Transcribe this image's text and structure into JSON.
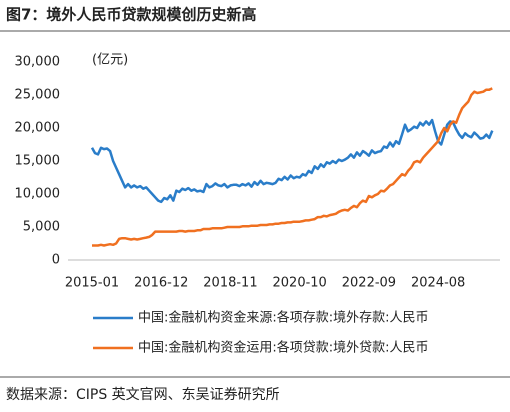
{
  "chart_data": {
    "type": "line",
    "title": "图7：境外人民币贷款规模创历史新高",
    "y_unit": "(亿元)",
    "source": "数据来源：CIPS 英文官网、东吴证券研究所",
    "categories": [
      "2015-01",
      null,
      null,
      null,
      null,
      null,
      null,
      null,
      null,
      null,
      null,
      null,
      null,
      null,
      null,
      null,
      null,
      null,
      null,
      null,
      null,
      null,
      null,
      "2016-12",
      null,
      null,
      null,
      null,
      null,
      null,
      null,
      null,
      null,
      null,
      null,
      null,
      null,
      null,
      null,
      null,
      null,
      null,
      null,
      null,
      null,
      null,
      "2018-11",
      null,
      null,
      null,
      null,
      null,
      null,
      null,
      null,
      null,
      null,
      null,
      null,
      null,
      null,
      null,
      null,
      null,
      null,
      null,
      null,
      null,
      null,
      "2020-10",
      null,
      null,
      null,
      null,
      null,
      null,
      null,
      null,
      null,
      null,
      null,
      null,
      null,
      null,
      null,
      null,
      null,
      null,
      null,
      null,
      null,
      null,
      "2022-09",
      null,
      null,
      null,
      null,
      null,
      null,
      null,
      null,
      null,
      null,
      null,
      null,
      null,
      null,
      null,
      null,
      null,
      null,
      null,
      null,
      null,
      null,
      "2024-08",
      null,
      null,
      null,
      null,
      null,
      null,
      null,
      null,
      null,
      null,
      null,
      null,
      null,
      null,
      null,
      null,
      null,
      null
    ],
    "ylim": [
      0,
      30000
    ],
    "yticks": [
      0,
      {
        "value": 5000,
        "label": "5,000"
      },
      {
        "value": 10000,
        "label": "10,000"
      },
      {
        "value": 15000,
        "label": "15,000"
      },
      {
        "value": 20000,
        "label": "20,000"
      },
      {
        "value": 25000,
        "label": "25,000"
      },
      {
        "value": 30000,
        "label": "30,000"
      }
    ],
    "grid": false,
    "series": [
      {
        "name": "中国:金融机构资金来源:各项存款:境外存款:人民币",
        "color": "#2a7dc9",
        "values": [
          17000,
          16200,
          16000,
          17000,
          16800,
          16900,
          16500,
          15000,
          14000,
          13000,
          12000,
          11000,
          11500,
          11000,
          11300,
          11000,
          11200,
          10800,
          11000,
          10500,
          10000,
          9500,
          9000,
          8800,
          9400,
          9200,
          9800,
          9000,
          10500,
          10300,
          10800,
          10600,
          10900,
          10500,
          10700,
          10400,
          10500,
          10300,
          11500,
          11000,
          11200,
          11600,
          11300,
          11200,
          11500,
          11000,
          11300,
          11400,
          11400,
          11200,
          11500,
          11300,
          11600,
          11100,
          11800,
          11400,
          12000,
          11500,
          11700,
          11600,
          11500,
          11700,
          12300,
          12100,
          12600,
          12200,
          12800,
          12400,
          12600,
          12500,
          13000,
          12800,
          13500,
          13200,
          14200,
          13800,
          14500,
          14100,
          14800,
          14600,
          15000,
          14700,
          15200,
          15000,
          15200,
          15500,
          16000,
          15500,
          16300,
          15800,
          16500,
          16200,
          15800,
          16600,
          16200,
          16400,
          16500,
          17200,
          17000,
          17800,
          17200,
          18000,
          17600,
          19000,
          20500,
          19500,
          19800,
          20200,
          20000,
          20800,
          20400,
          21000,
          20500,
          21200,
          19500,
          18000,
          17500,
          19000,
          20500,
          21000,
          20800,
          19800,
          19000,
          18500,
          19200,
          18800,
          18600,
          19300,
          18900,
          18400,
          18500,
          19000,
          18500,
          19600
        ]
      },
      {
        "name": "中国:金融机构资金运用:各项贷款:境外贷款:人民币",
        "color": "#f07020",
        "values": [
          2200,
          2200,
          2200,
          2300,
          2200,
          2300,
          2400,
          2300,
          2500,
          3200,
          3300,
          3300,
          3200,
          3100,
          3200,
          3100,
          3200,
          3300,
          3400,
          3500,
          3800,
          4300,
          4300,
          4300,
          4300,
          4300,
          4300,
          4300,
          4300,
          4400,
          4400,
          4300,
          4400,
          4400,
          4400,
          4500,
          4500,
          4700,
          4700,
          4700,
          4800,
          4800,
          4800,
          4800,
          4900,
          5000,
          5000,
          5000,
          5000,
          5000,
          5100,
          5100,
          5100,
          5200,
          5200,
          5200,
          5300,
          5300,
          5300,
          5400,
          5400,
          5500,
          5500,
          5600,
          5600,
          5700,
          5700,
          5800,
          5800,
          5800,
          5900,
          6000,
          6000,
          6100,
          6200,
          6500,
          6500,
          6700,
          6600,
          6800,
          6900,
          7000,
          7300,
          7500,
          7600,
          7500,
          7900,
          8200,
          8000,
          8600,
          9000,
          8800,
          9700,
          9500,
          9800,
          10000,
          10500,
          10400,
          10800,
          11300,
          11500,
          12000,
          12500,
          13000,
          12800,
          13500,
          14000,
          14800,
          15000,
          14800,
          15500,
          16000,
          16500,
          17000,
          17500,
          18000,
          19200,
          20000,
          19500,
          20500,
          21000,
          20800,
          22000,
          23000,
          23500,
          24000,
          25000,
          25500,
          25300,
          25400,
          25500,
          25800,
          25800,
          26000
        ]
      }
    ]
  }
}
